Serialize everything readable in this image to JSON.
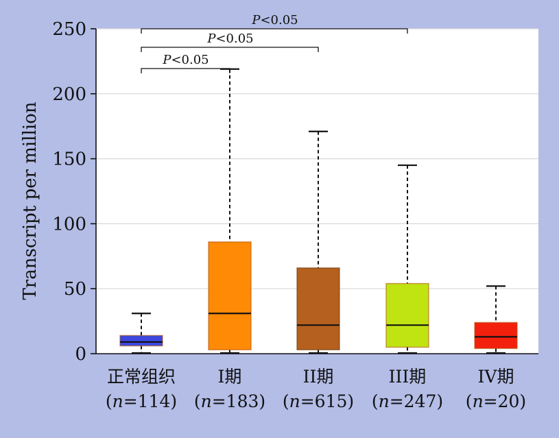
{
  "chart_data": {
    "type": "box",
    "ylabel": "Transcript per million",
    "ylim": [
      0,
      250
    ],
    "yticks": [
      0,
      50,
      100,
      150,
      200,
      250
    ],
    "grid": true,
    "groups": [
      {
        "label": "正常组织",
        "n_label": "(n=114)",
        "n_prefix": "(",
        "n_var": "n",
        "n_rest": "=114)",
        "color": "#3c48e0",
        "min": 0,
        "q1": 6,
        "median": 9,
        "q3": 14,
        "max": 31
      },
      {
        "label": "I期",
        "n_label": "(n=183)",
        "n_prefix": "(",
        "n_var": "n",
        "n_rest": "=183)",
        "color": "#ff8a06",
        "min": 0,
        "q1": 3,
        "median": 31,
        "q3": 86,
        "max": 219
      },
      {
        "label": "II期",
        "n_label": "(n=615)",
        "n_prefix": "(",
        "n_var": "n",
        "n_rest": "=615)",
        "color": "#b5601e",
        "min": 0,
        "q1": 3,
        "median": 22,
        "q3": 66,
        "max": 171
      },
      {
        "label": "III期",
        "n_label": "(n=247)",
        "n_prefix": "(",
        "n_var": "n",
        "n_rest": "=247)",
        "color": "#c0e412",
        "min": 0,
        "q1": 5,
        "median": 22,
        "q3": 54,
        "max": 145
      },
      {
        "label": "IV期",
        "n_label": "(n=20)",
        "n_prefix": "(",
        "n_var": "n",
        "n_rest": "=20)",
        "color": "#f4200e",
        "min": 0,
        "q1": 4,
        "median": 13,
        "q3": 24,
        "max": 52
      }
    ],
    "annotations": [
      {
        "from": 0,
        "to": 1,
        "p": "P",
        "text": "<0.05"
      },
      {
        "from": 0,
        "to": 2,
        "p": "P",
        "text": "<0.05"
      },
      {
        "from": 0,
        "to": 3,
        "p": "P",
        "text": "<0.05"
      }
    ]
  }
}
